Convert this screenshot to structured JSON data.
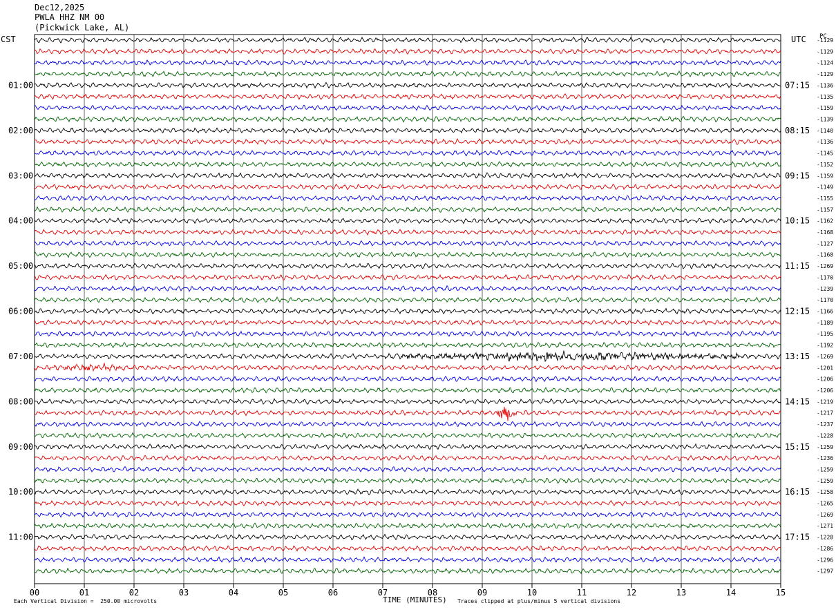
{
  "header": {
    "date": "Dec12,2025",
    "station": "PWLA HHZ NM 00",
    "location": "(Pickwick Lake, AL)"
  },
  "chart_data": {
    "type": "line",
    "left_tz": "CST",
    "right_tz": "UTC",
    "pc_label": "PC",
    "xlabel": "TIME (MINUTES)",
    "xlim": [
      0,
      15
    ],
    "x_ticks": [
      "00",
      "01",
      "02",
      "03",
      "04",
      "05",
      "06",
      "07",
      "08",
      "09",
      "10",
      "11",
      "12",
      "13",
      "14",
      "15"
    ],
    "left_hour_labels": [
      "01:00",
      "02:00",
      "03:00",
      "04:00",
      "05:00",
      "06:00",
      "07:00",
      "08:00",
      "09:00",
      "10:00",
      "11:00"
    ],
    "right_hour_labels": [
      "07:15",
      "08:15",
      "09:15",
      "10:15",
      "11:15",
      "12:15",
      "13:15",
      "14:15",
      "15:15",
      "16:15",
      "17:15"
    ],
    "trace_colors": [
      "#000000",
      "#e00000",
      "#0000e0",
      "#006400"
    ],
    "trace_count": 48,
    "right_trace_values": [
      "-1129",
      "-1129",
      "-1124",
      "-1129",
      "-1136",
      "-1135",
      "-1159",
      "-1139",
      "-1140",
      "-1136",
      "-1145",
      "-1152",
      "-1159",
      "-1149",
      "-1155",
      "-1157",
      "-1162",
      "-1168",
      "-1127",
      "-1168",
      "-1269",
      "-1170",
      "-1239",
      "-1170",
      "-1166",
      "-1189",
      "-1195",
      "-1192",
      "-1269",
      "-1201",
      "-1206",
      "-1206",
      "-1219",
      "-1217",
      "-1237",
      "-1228",
      "-1259",
      "-1236",
      "-1259",
      "-1259",
      "-1258",
      "-1265",
      "-1269",
      "-1271",
      "-1228",
      "-1286",
      "-1296",
      "-1297"
    ],
    "events": [
      {
        "trace": 28,
        "start_min": 7.1,
        "end_min": 14.2,
        "amplitude": 1.8
      },
      {
        "trace": 29,
        "start_min": 0.3,
        "end_min": 1.8,
        "amplitude": 1.3
      },
      {
        "trace": 33,
        "start_min": 9.3,
        "end_min": 9.7,
        "amplitude": 3.5
      }
    ],
    "scale_note": "Each Vertical Division =  250.00 microvolts",
    "clip_note": "Traces clipped at plus/minus 5 vertical divisions"
  }
}
